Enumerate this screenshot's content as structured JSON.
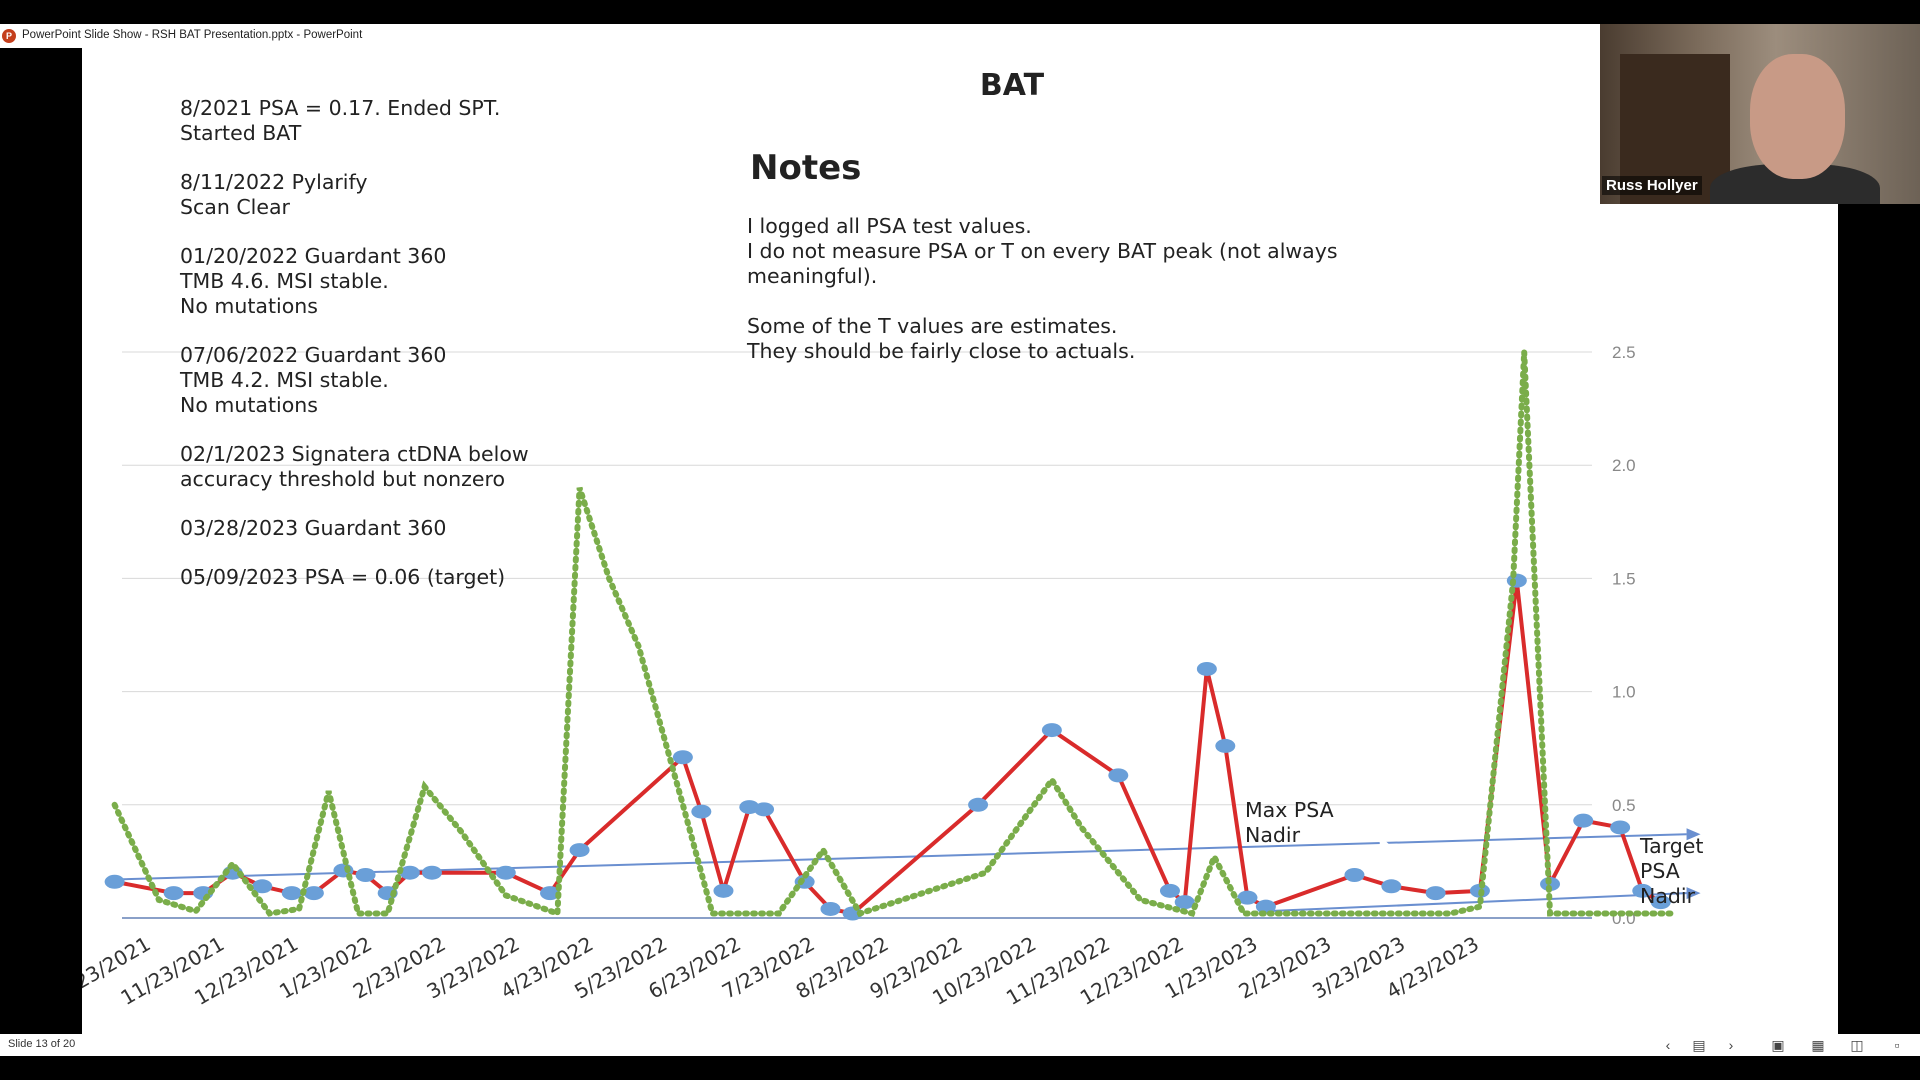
{
  "window": {
    "title": "PowerPoint Slide Show  -  RSH BAT Presentation.pptx - PowerPoint",
    "app_icon": "powerpoint-icon"
  },
  "slide": {
    "title": "BAT",
    "notes_heading": "Notes",
    "notes_paragraphs": [
      "I logged all PSA test values.\nI do not measure PSA or T on every BAT peak (not always meaningful).",
      "Some of the T values are estimates.\nThey should be fairly close to actuals."
    ],
    "left_notes": [
      "8/2021 PSA = 0.17. Ended SPT.\nStarted BAT",
      "8/11/2022 Pylarify\nScan Clear",
      "01/20/2022 Guardant 360\nTMB 4.6. MSI stable.\nNo mutations",
      "07/06/2022 Guardant 360\nTMB 4.2. MSI stable.\nNo mutations",
      "02/1/2023 Signatera ctDNA below\naccuracy threshold but nonzero",
      "03/28/2023 Guardant 360",
      "05/09/2023 PSA = 0.06 (target)"
    ],
    "annotations": {
      "max_nadir": "Max PSA\nNadir",
      "target_nadir": "Target\nPSA\nNadir"
    }
  },
  "chart_data": {
    "type": "line",
    "x_ticks": [
      "/23/2021",
      "11/23/2021",
      "12/23/2021",
      "1/23/2022",
      "2/23/2022",
      "3/23/2022",
      "4/23/2022",
      "5/23/2022",
      "6/23/2022",
      "7/23/2022",
      "8/23/2022",
      "9/23/2022",
      "10/23/2022",
      "11/23/2022",
      "12/23/2022",
      "1/23/2023",
      "2/23/2023",
      "3/23/2023",
      "4/23/2023"
    ],
    "y_ticks": [
      "2.5",
      "2.0",
      "1.5",
      "1.0",
      "0.5",
      "0.0"
    ],
    "ylim": [
      0,
      2.5
    ],
    "grid": true,
    "series": [
      {
        "color": "#d92b2b",
        "style": "solid-with-markers",
        "marker_color": "#6a9fd8",
        "points": [
          [
            -0.1,
            0.16
          ],
          [
            0.7,
            0.11
          ],
          [
            1.1,
            0.11
          ],
          [
            1.5,
            0.2
          ],
          [
            1.9,
            0.14
          ],
          [
            2.3,
            0.11
          ],
          [
            2.6,
            0.11
          ],
          [
            3.0,
            0.21
          ],
          [
            3.3,
            0.19
          ],
          [
            3.6,
            0.11
          ],
          [
            3.9,
            0.2
          ],
          [
            4.2,
            0.2
          ],
          [
            5.2,
            0.2
          ],
          [
            5.8,
            0.11
          ],
          [
            6.2,
            0.3
          ],
          [
            7.6,
            0.71
          ],
          [
            7.85,
            0.47
          ],
          [
            8.15,
            0.12
          ],
          [
            8.5,
            0.49
          ],
          [
            8.7,
            0.48
          ],
          [
            9.25,
            0.16
          ],
          [
            9.6,
            0.04
          ],
          [
            9.9,
            0.02
          ],
          [
            11.6,
            0.5
          ],
          [
            12.6,
            0.83
          ],
          [
            13.5,
            0.63
          ],
          [
            14.2,
            0.12
          ],
          [
            14.4,
            0.07
          ],
          [
            14.7,
            1.1
          ],
          [
            14.95,
            0.76
          ],
          [
            15.25,
            0.09
          ],
          [
            15.5,
            0.05
          ],
          [
            16.7,
            0.19
          ],
          [
            17.2,
            0.14
          ],
          [
            17.8,
            0.11
          ],
          [
            18.4,
            0.12
          ],
          [
            18.9,
            1.49
          ],
          [
            19.35,
            0.15
          ],
          [
            19.8,
            0.43
          ],
          [
            20.3,
            0.4
          ],
          [
            20.6,
            0.12
          ],
          [
            20.85,
            0.07
          ]
        ]
      },
      {
        "color": "#7aad4a",
        "style": "dotted",
        "points": [
          [
            -0.1,
            0.5
          ],
          [
            0.5,
            0.08
          ],
          [
            1.0,
            0.03
          ],
          [
            1.5,
            0.24
          ],
          [
            2.0,
            0.02
          ],
          [
            2.4,
            0.04
          ],
          [
            2.8,
            0.56
          ],
          [
            3.2,
            0.02
          ],
          [
            3.6,
            0.02
          ],
          [
            4.1,
            0.58
          ],
          [
            4.6,
            0.38
          ],
          [
            5.2,
            0.1
          ],
          [
            5.9,
            0.02
          ],
          [
            6.2,
            1.9
          ],
          [
            6.6,
            1.5
          ],
          [
            7.0,
            1.2
          ],
          [
            7.6,
            0.5
          ],
          [
            8.0,
            0.02
          ],
          [
            8.9,
            0.02
          ],
          [
            9.5,
            0.3
          ],
          [
            10.0,
            0.02
          ],
          [
            11.7,
            0.2
          ],
          [
            12.6,
            0.61
          ],
          [
            13.0,
            0.4
          ],
          [
            13.8,
            0.08
          ],
          [
            14.5,
            0.02
          ],
          [
            14.8,
            0.27
          ],
          [
            15.2,
            0.02
          ],
          [
            18.0,
            0.02
          ],
          [
            18.4,
            0.05
          ],
          [
            18.85,
            1.49
          ],
          [
            19.0,
            2.5
          ],
          [
            19.35,
            0.02
          ],
          [
            20.0,
            0.02
          ],
          [
            20.6,
            0.02
          ],
          [
            21.0,
            0.02
          ]
        ]
      }
    ],
    "trend_lines": [
      {
        "color": "#6a8fd0",
        "from": [
          -0.1,
          0.17
        ],
        "to": [
          21.2,
          0.37
        ]
      },
      {
        "color": "#6a8fd0",
        "from": [
          15.5,
          0.03
        ],
        "to": [
          21.2,
          0.11
        ]
      }
    ]
  },
  "webcam": {
    "participant": "Russ Hollyer"
  },
  "statusbar": {
    "slide_indicator": "Slide 13 of 20",
    "controls": [
      "chevron-left-icon",
      "slide-menu-icon",
      "chevron-right-icon",
      "normal-view-icon",
      "slide-sorter-icon",
      "reading-view-icon",
      "slideshow-icon"
    ]
  }
}
